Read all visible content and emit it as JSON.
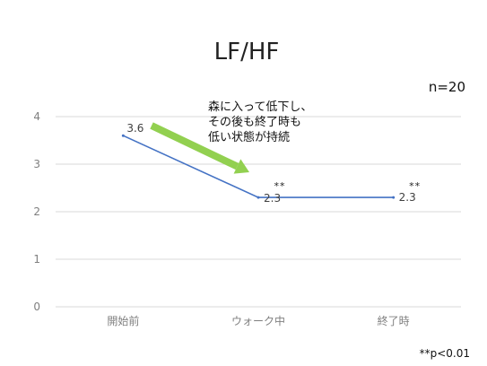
{
  "chart_data": {
    "type": "line",
    "title": "LF/HF",
    "categories": [
      "開始前",
      "ウォーク中",
      "終了時"
    ],
    "series": [
      {
        "values": [
          3.6,
          2.3,
          2.3
        ]
      }
    ],
    "data_labels": [
      "3.6",
      "2.3",
      "2.3"
    ],
    "ylim": [
      0,
      4
    ],
    "yticks": [
      "0",
      "1",
      "2",
      "3",
      "4"
    ],
    "grid": true,
    "significance": [
      "",
      "**",
      "**"
    ],
    "annotation": [
      "森に入って低下し、",
      "その後も終了時も",
      "低い状態が持続"
    ],
    "sample_size": "n=20",
    "footnote": "**p<0.01",
    "colors": {
      "line": "#4472c4",
      "arrow": "#92d050",
      "grid": "#d9d9d9"
    }
  }
}
